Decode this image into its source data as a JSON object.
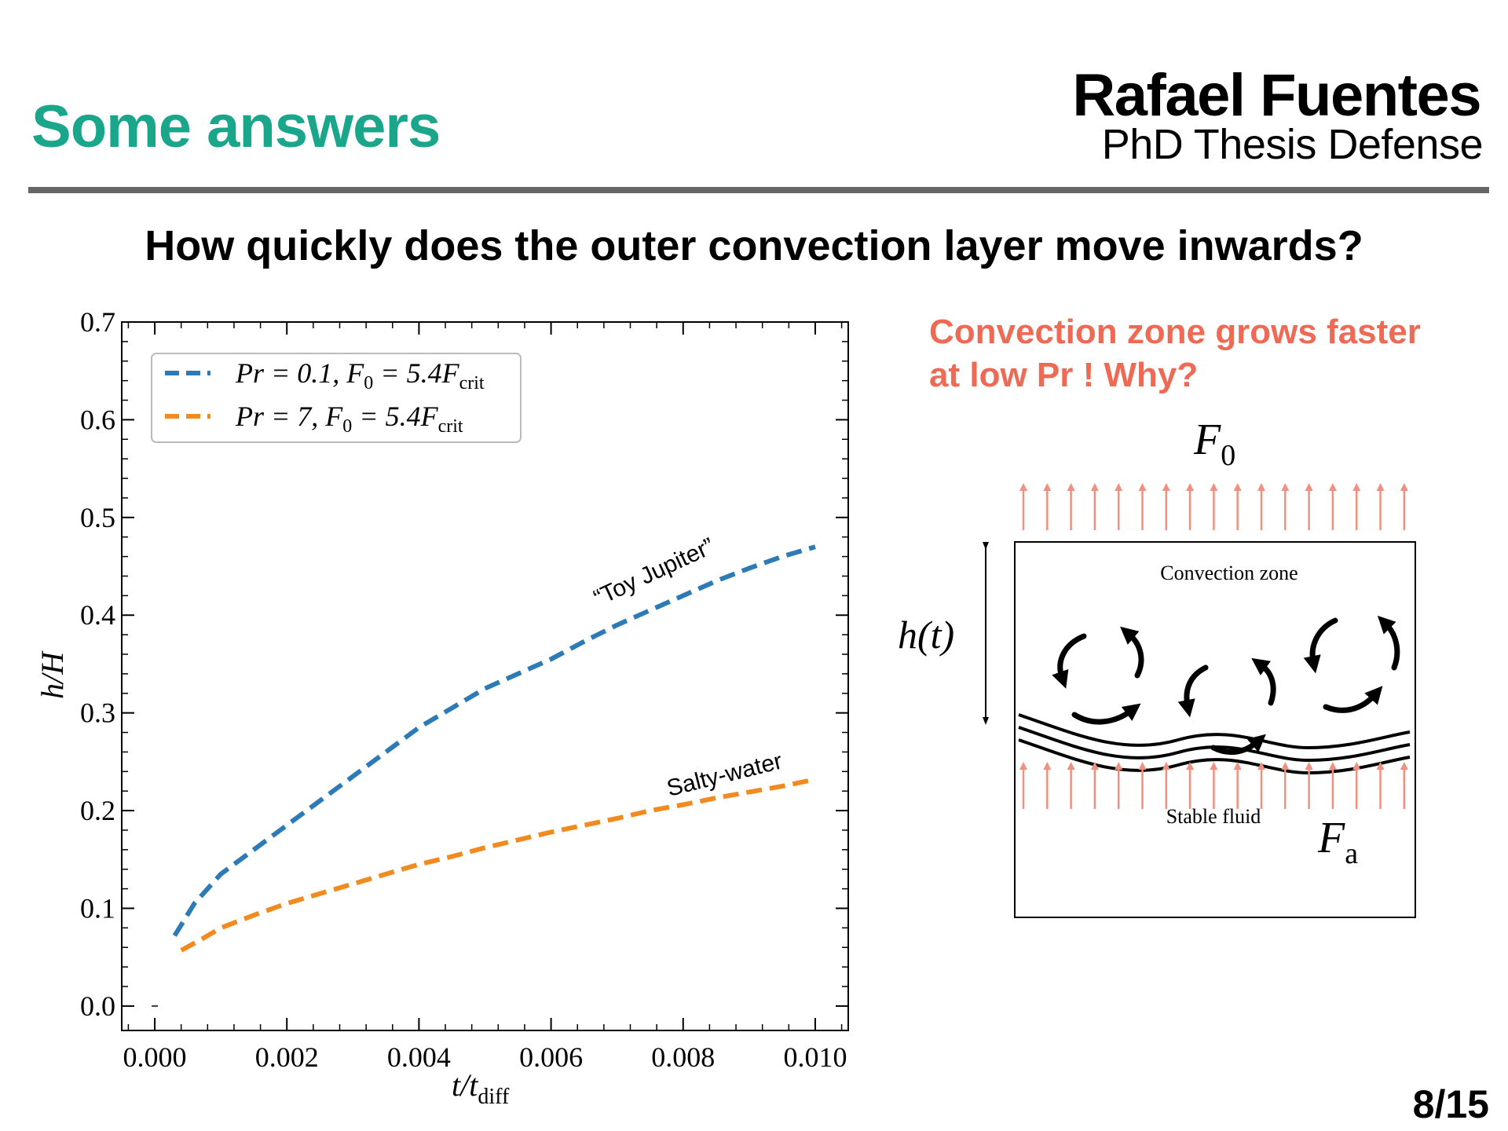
{
  "slide": {
    "title": "Some answers",
    "author": "Rafael Fuentes",
    "event": "PhD Thesis Defense",
    "question": "How quickly does the outer convection layer move inwards?",
    "answer_lines": [
      "Convection zone grows faster",
      "at low Pr !  Why?"
    ],
    "page": "8/15"
  },
  "diagram": {
    "top_flux": "F",
    "top_flux_sub": "0",
    "bottom_flux": "F",
    "bottom_flux_sub": "a",
    "height_label": "h(t)",
    "convection_label": "Convection zone",
    "stable_label": "Stable fluid"
  },
  "colors": {
    "title": "#1aa68a",
    "answer": "#ee6a55",
    "series_low_pr": "#2d7bb6",
    "series_high_pr": "#f18a1f",
    "flux_arrows": "#f09080"
  },
  "chart_data": {
    "type": "line",
    "xlabel": "t/t",
    "xlabel_sub": "diff",
    "ylabel": "h/H",
    "xlim": [
      -0.0005,
      0.0105
    ],
    "ylim": [
      -0.025,
      0.7
    ],
    "xticks": [
      "0.000",
      "0.002",
      "0.004",
      "0.006",
      "0.008",
      "0.010"
    ],
    "yticks": [
      "0.0",
      "0.1",
      "0.2",
      "0.3",
      "0.4",
      "0.5",
      "0.6",
      "0.7"
    ],
    "legend_position": "top-left",
    "series": [
      {
        "name": "Pr = 0.1, F0 = 5.4Fcrit",
        "legend_main": "Pr = 0.1,  F",
        "legend_sub1": "0",
        "legend_mid": " = 5.4F",
        "legend_sub2": "crit",
        "color": "#2d7bb6",
        "annotation": "“Toy Jupiter”",
        "x": [
          0.0003,
          0.0006,
          0.001,
          0.0015,
          0.002,
          0.0025,
          0.003,
          0.0035,
          0.004,
          0.0045,
          0.005,
          0.0055,
          0.006,
          0.0065,
          0.007,
          0.0075,
          0.008,
          0.0085,
          0.009,
          0.0095,
          0.01
        ],
        "y": [
          0.072,
          0.105,
          0.135,
          0.16,
          0.185,
          0.21,
          0.235,
          0.26,
          0.285,
          0.305,
          0.325,
          0.34,
          0.355,
          0.373,
          0.39,
          0.405,
          0.42,
          0.435,
          0.448,
          0.46,
          0.47
        ]
      },
      {
        "name": "Pr = 7, F0 = 5.4Fcrit",
        "legend_main": "Pr = 7,  F",
        "legend_sub1": "0",
        "legend_mid": " = 5.4F",
        "legend_sub2": "crit",
        "color": "#f18a1f",
        "annotation": "Salty-water",
        "x": [
          0.0004,
          0.0007,
          0.001,
          0.0015,
          0.002,
          0.0025,
          0.003,
          0.0035,
          0.004,
          0.0045,
          0.005,
          0.0055,
          0.006,
          0.0065,
          0.007,
          0.0075,
          0.008,
          0.0085,
          0.009,
          0.0095,
          0.01
        ],
        "y": [
          0.057,
          0.068,
          0.08,
          0.093,
          0.105,
          0.115,
          0.125,
          0.135,
          0.145,
          0.153,
          0.162,
          0.17,
          0.178,
          0.185,
          0.192,
          0.2,
          0.206,
          0.213,
          0.219,
          0.225,
          0.232
        ]
      }
    ]
  }
}
